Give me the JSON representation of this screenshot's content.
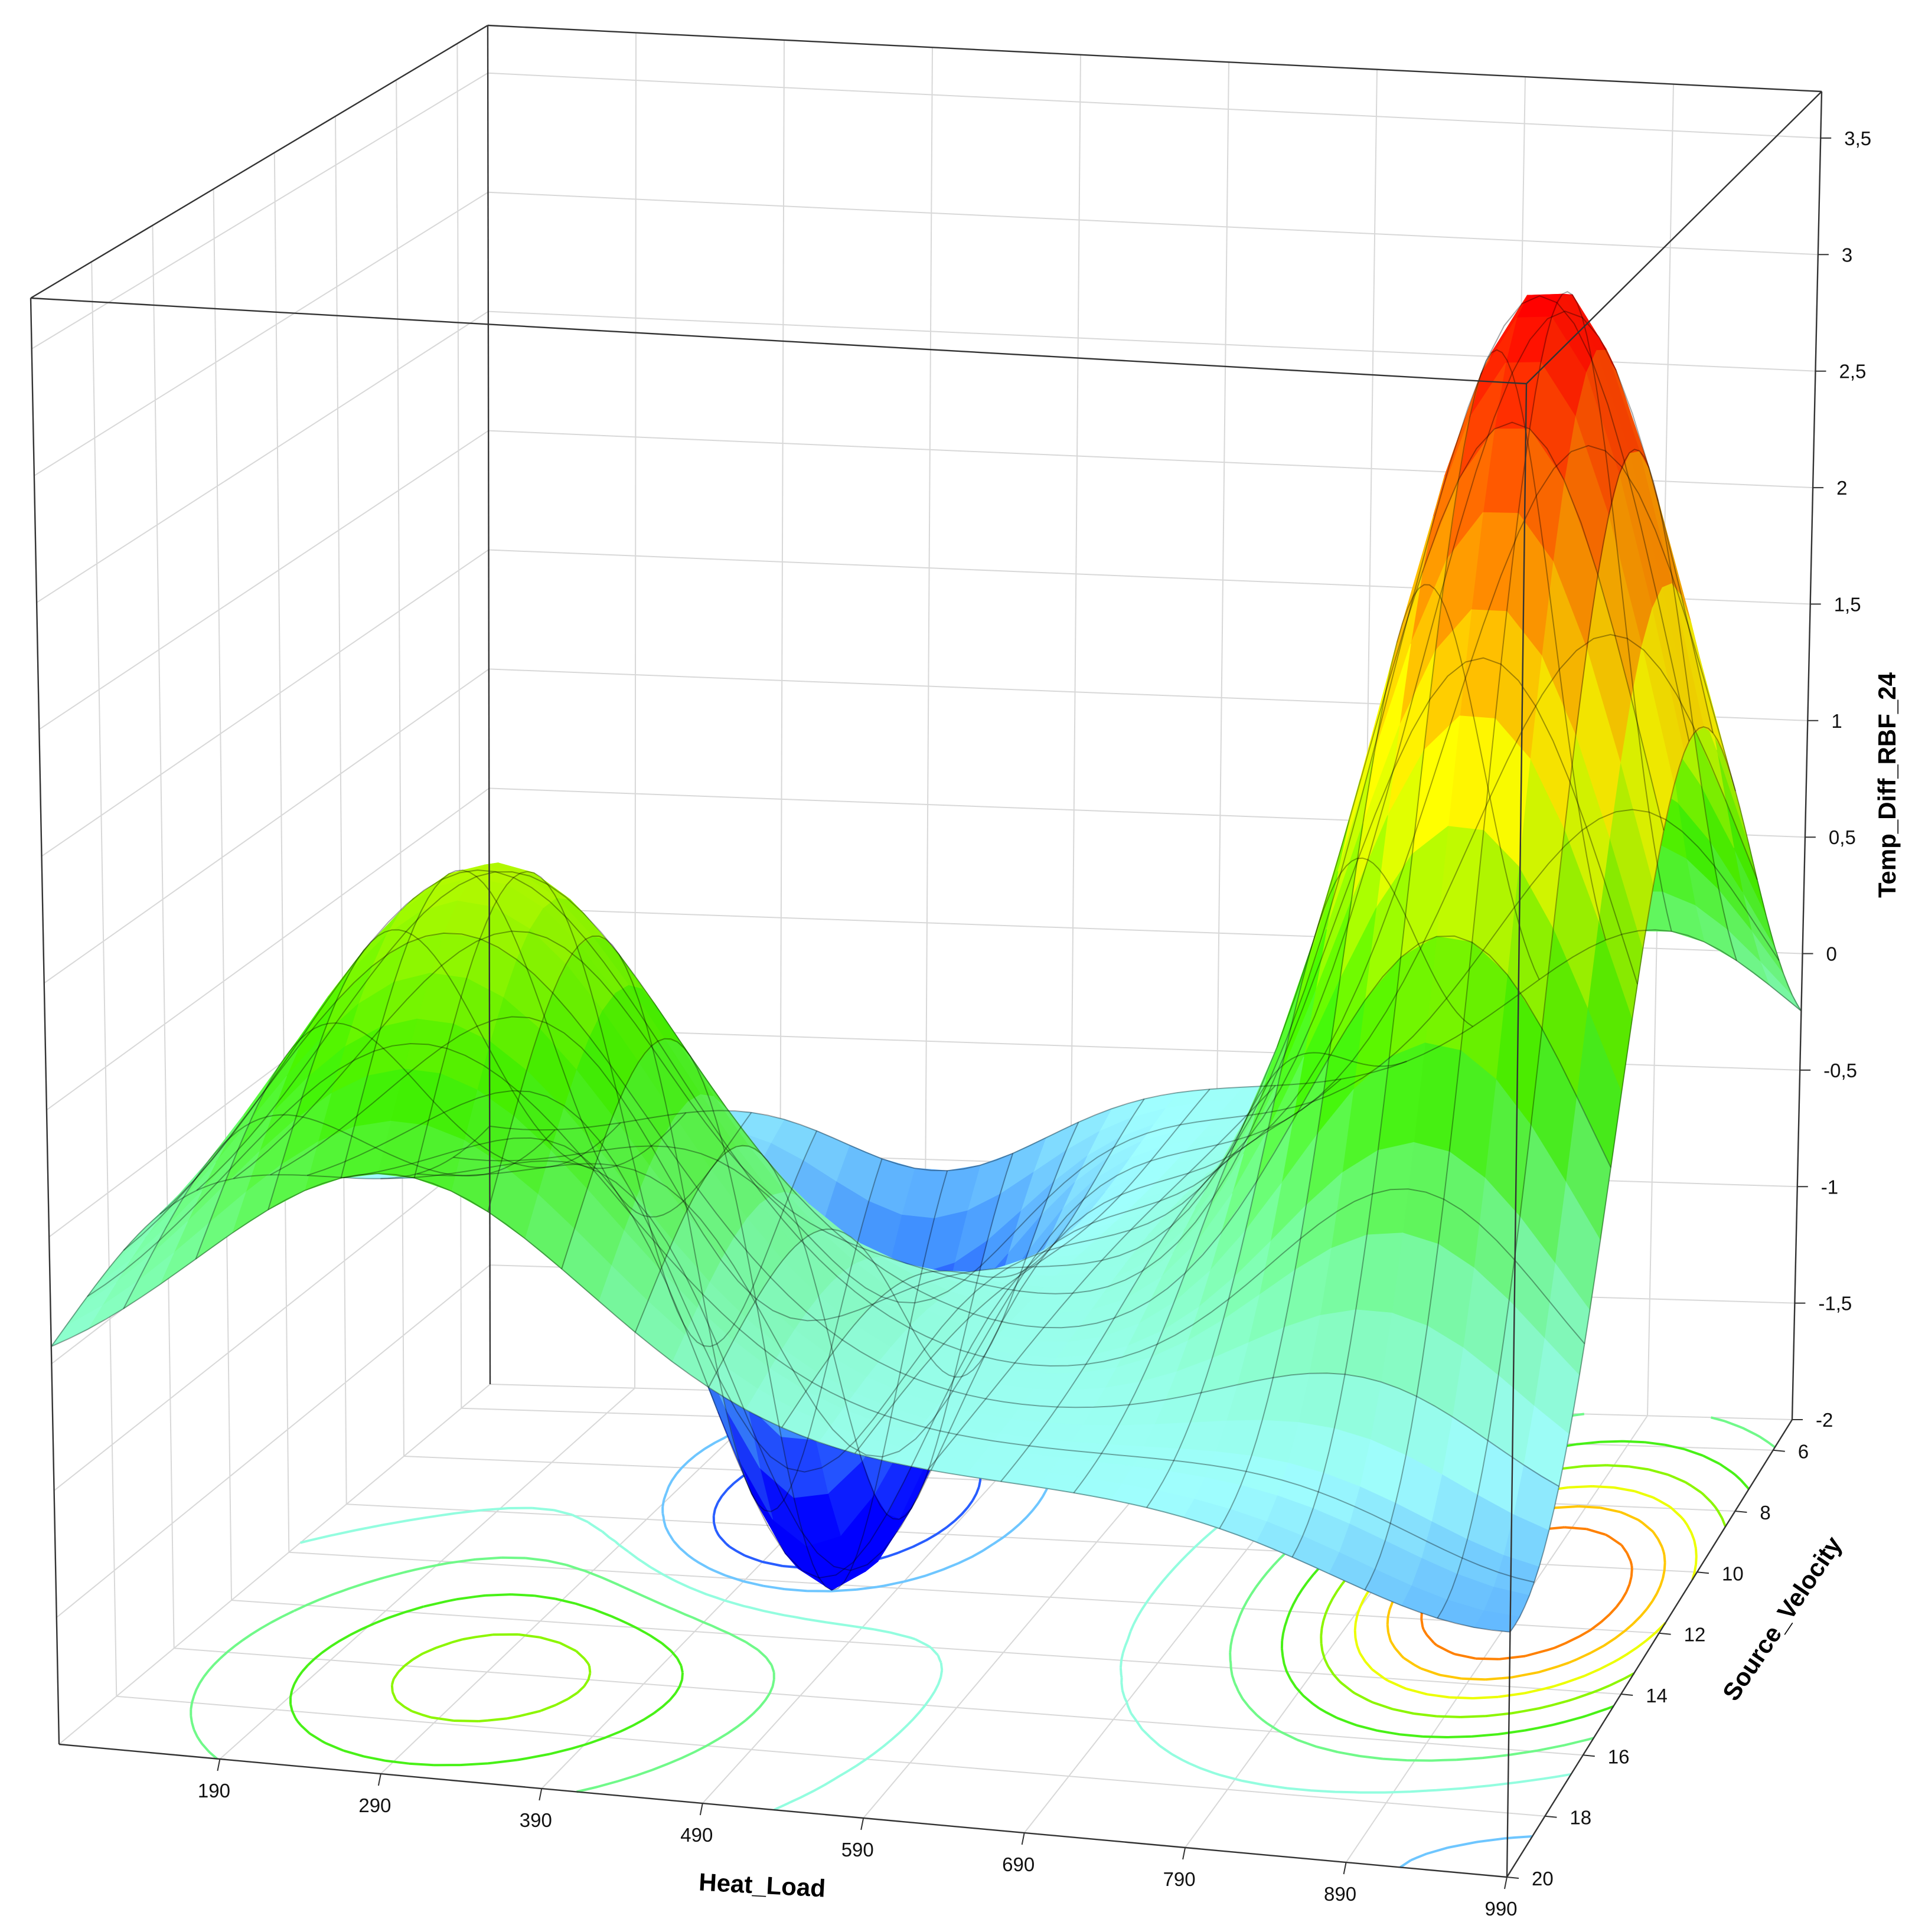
{
  "chart_data": {
    "type": "surface",
    "x_axis": {
      "label": "Heat_Load",
      "ticks": [
        190,
        290,
        390,
        490,
        590,
        690,
        790,
        890,
        990
      ],
      "range": [
        90,
        990
      ]
    },
    "y_axis": {
      "label": "Source_Velocity",
      "ticks": [
        6,
        8,
        10,
        12,
        14,
        16,
        18,
        20
      ],
      "range": [
        5,
        20
      ]
    },
    "z_axis": {
      "label": "Temp_Diff_RBF_24",
      "ticks": [
        "3,5",
        "3",
        "2,5",
        "2",
        "1,5",
        "1",
        "0,5",
        "0",
        "-0,5",
        "-1",
        "-1,5",
        "-2"
      ],
      "tick_values": [
        3.5,
        3,
        2.5,
        2,
        1.5,
        1,
        0.5,
        0,
        -0.5,
        -1,
        -1.5,
        -2
      ],
      "range": [
        -2,
        3.7
      ]
    },
    "surface_peaks": [
      {
        "heat_load": 890,
        "source_velocity": 11,
        "temp_diff": 3.3,
        "kind": "max"
      },
      {
        "heat_load": 300,
        "source_velocity": 16,
        "temp_diff": 0.55,
        "kind": "local max"
      },
      {
        "heat_load": 390,
        "source_velocity": 9.5,
        "temp_diff": -1.85,
        "kind": "min"
      }
    ],
    "contour_projection": true,
    "colormap": [
      "#0000ff",
      "#a0ffff",
      "#40f000",
      "#ffff00",
      "#ff8000",
      "#ff0000"
    ],
    "grid": true
  }
}
